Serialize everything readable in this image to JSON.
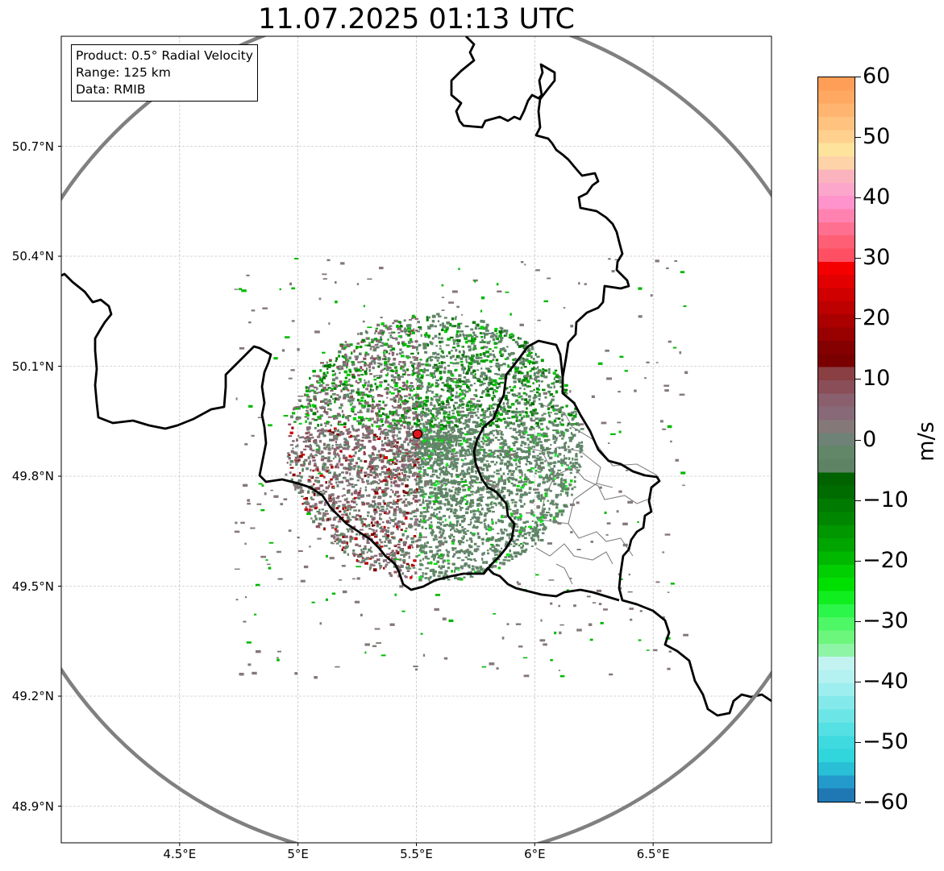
{
  "title": "11.07.2025 01:13 UTC",
  "info": {
    "product": "Product: 0.5° Radial Velocity",
    "range": "Range: 125 km",
    "data": "Data: RMIB"
  },
  "map": {
    "lon_range": [
      4.0,
      7.0
    ],
    "lat_range": [
      48.8,
      51.0
    ],
    "gridlines": true,
    "lon_ticks": [
      {
        "value": 4.5,
        "label": "4.5°E"
      },
      {
        "value": 5.0,
        "label": "5°E"
      },
      {
        "value": 5.5,
        "label": "5.5°E"
      },
      {
        "value": 6.0,
        "label": "6°E"
      },
      {
        "value": 6.5,
        "label": "6.5°E"
      }
    ],
    "lat_ticks": [
      {
        "value": 50.7,
        "label": "50.7°N"
      },
      {
        "value": 50.4,
        "label": "50.4°N"
      },
      {
        "value": 50.1,
        "label": "50.1°N"
      },
      {
        "value": 49.8,
        "label": "49.8°N"
      },
      {
        "value": 49.5,
        "label": "49.5°N"
      },
      {
        "value": 49.2,
        "label": "49.2°N"
      },
      {
        "value": 48.9,
        "label": "48.9°N"
      }
    ],
    "radar_site": {
      "lon": 5.505,
      "lat": 49.915,
      "color": "#e2151b"
    },
    "range_ring_km": 125,
    "range_ring_color": "#808080",
    "border_color": "#000000",
    "district_color": "#808080"
  },
  "colorbar": {
    "unit": "m/s",
    "min": -60,
    "max": 60,
    "ticks": [
      {
        "value": 60,
        "label": "60"
      },
      {
        "value": 50,
        "label": "50"
      },
      {
        "value": 40,
        "label": "40"
      },
      {
        "value": 30,
        "label": "30"
      },
      {
        "value": 20,
        "label": "20"
      },
      {
        "value": 10,
        "label": "10"
      },
      {
        "value": 0,
        "label": "0"
      },
      {
        "value": -10,
        "label": "−10"
      },
      {
        "value": -20,
        "label": "−20"
      },
      {
        "value": -30,
        "label": "−30"
      },
      {
        "value": -40,
        "label": "−40"
      },
      {
        "value": -50,
        "label": "−50"
      },
      {
        "value": -60,
        "label": "−60"
      }
    ],
    "colors": [
      "#1f78b4",
      "#2399cc",
      "#29bfd6",
      "#30d6dc",
      "#3edadf",
      "#55e0e3",
      "#6ce5e6",
      "#84e9ea",
      "#9deeee",
      "#b4f1f1",
      "#c3f3f1",
      "#8df5a5",
      "#6cf67c",
      "#4ef765",
      "#2cf649",
      "#10ee20",
      "#00e000",
      "#02cf02",
      "#00b800",
      "#00a500",
      "#009700",
      "#008600",
      "#007a00",
      "#006c00",
      "#006300",
      "#5d8364",
      "#618768",
      "#6f8277",
      "#857878",
      "#886978",
      "#8a5f6e",
      "#8a4e58",
      "#8a3f43",
      "#7a0000",
      "#850000",
      "#990000",
      "#aa0000",
      "#bd0000",
      "#d00000",
      "#e20000",
      "#f50000",
      "#ff4f62",
      "#ff5f75",
      "#ff7090",
      "#ff82b0",
      "#ff93cc",
      "#fda6cc",
      "#fbb4bd",
      "#fed3a8",
      "#fee39d",
      "#ffd08e",
      "#ffc27f",
      "#ffb46f",
      "#ffa862",
      "#ff9e57"
    ]
  }
}
